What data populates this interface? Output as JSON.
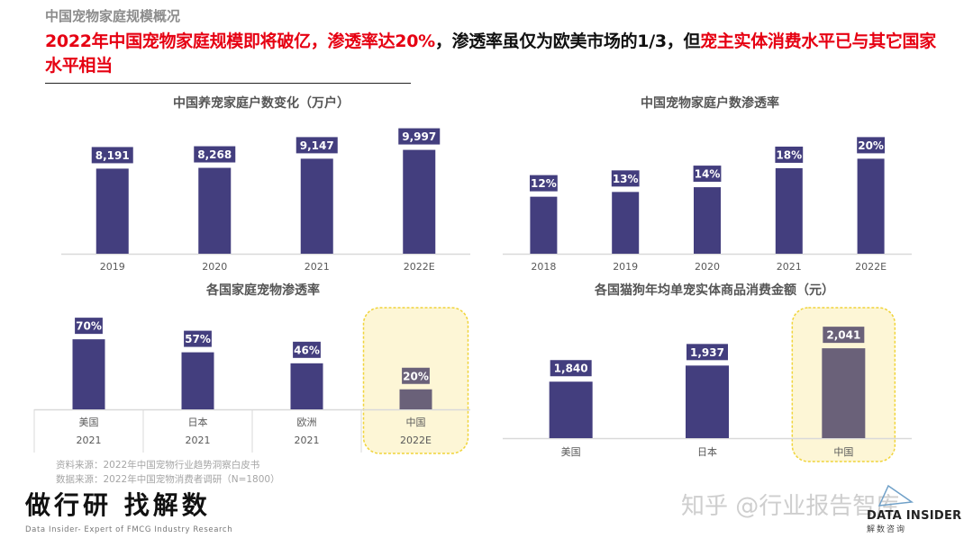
{
  "header": {
    "kicker": "中国宠物家庭规模概况",
    "headline_parts": [
      {
        "text": "2022年中国宠物家庭规模即将破亿，渗透率达20%",
        "color": "#e60012"
      },
      {
        "text": "，渗透率虽仅为欧美市场的1/3，但",
        "color": "#111111"
      },
      {
        "text": "宠主实体消费水平已与其它国家水平相当",
        "color": "#e60012"
      }
    ]
  },
  "colors": {
    "bar": "#433e7e",
    "highlight_bar": "#6a6179",
    "highlight_fill": "#fdf6d6",
    "highlight_border": "#f0d43a",
    "axis": "#d9d9d9"
  },
  "chart_data": [
    {
      "id": "households",
      "type": "bar",
      "title": "中国养宠家庭户数变化（万户）",
      "categories": [
        "2019",
        "2020",
        "2021",
        "2022E"
      ],
      "values": [
        8191,
        8268,
        9147,
        9997
      ],
      "labels": [
        "8,191",
        "8,268",
        "9,147",
        "9,997"
      ],
      "ylim": [
        0,
        11000
      ],
      "grid": false,
      "legend": "none"
    },
    {
      "id": "penetration_cn",
      "type": "bar",
      "title": "中国宠物家庭户数渗透率",
      "categories": [
        "2018",
        "2019",
        "2020",
        "2021",
        "2022E"
      ],
      "values": [
        12,
        13,
        14,
        18,
        20
      ],
      "labels": [
        "12%",
        "13%",
        "14%",
        "18%",
        "20%"
      ],
      "ylim": [
        0,
        25
      ],
      "grid": false,
      "legend": "none"
    },
    {
      "id": "penetration_countries",
      "type": "bar",
      "title": "各国家庭宠物渗透率",
      "categories": [
        "美国",
        "日本",
        "欧洲",
        "中国"
      ],
      "sub_categories": [
        "2021",
        "2021",
        "2021",
        "2022E"
      ],
      "values": [
        70,
        57,
        46,
        20
      ],
      "labels": [
        "70%",
        "57%",
        "46%",
        "20%"
      ],
      "highlight": "中国",
      "ylim": [
        0,
        80
      ],
      "grid": false,
      "legend": "none"
    },
    {
      "id": "spending",
      "type": "bar",
      "title": "各国猫狗年均单宠实体商品消费金额（元）",
      "categories": [
        "美国",
        "日本",
        "中国"
      ],
      "values": [
        1840,
        1937,
        2041
      ],
      "labels": [
        "1,840",
        "1,937",
        "2,041"
      ],
      "highlight": "中国",
      "ylim": [
        1500,
        2150
      ],
      "grid": false,
      "legend": "none"
    }
  ],
  "sources": {
    "line1": "资料来源：2022年中国宠物行业趋势洞察白皮书",
    "line2": "数据来源：2022年中国宠物消费者调研（N=1800）"
  },
  "footer": {
    "slogan": "做行研 找解数",
    "slogan_sub": "Data Insider- Expert of FMCG Industry Research",
    "watermark": "知乎 @行业报告智库",
    "logo_name": "DATA INSIDER",
    "logo_sub": "解数咨询"
  }
}
